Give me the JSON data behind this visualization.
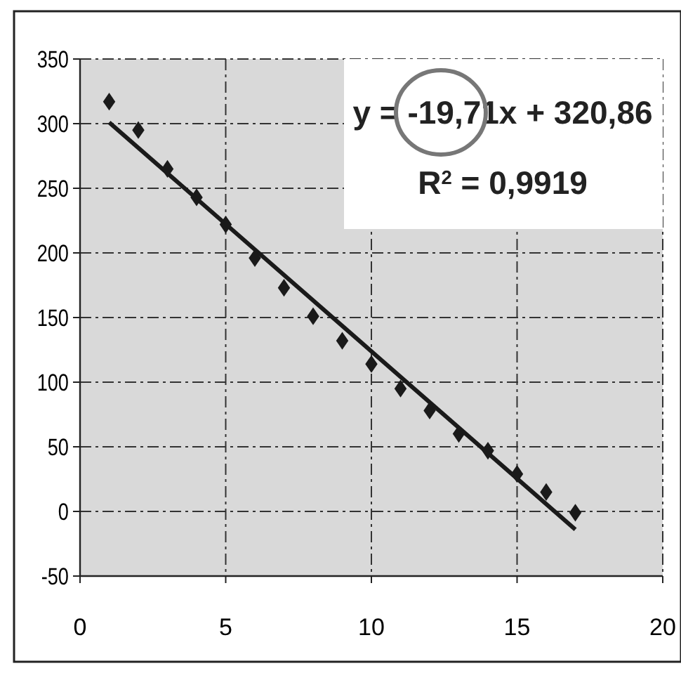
{
  "chart_data": {
    "type": "scatter",
    "x": [
      1,
      2,
      3,
      4,
      5,
      6,
      7,
      8,
      9,
      10,
      11,
      12,
      13,
      14,
      15,
      16,
      17
    ],
    "series": [
      {
        "color": "#1a1a1a",
        "marker": "diamond",
        "values": [
          317,
          295,
          265,
          243,
          222,
          196,
          173,
          151,
          132,
          114,
          95,
          78,
          60,
          47,
          29,
          15,
          -1
        ]
      },
      {
        "type": "line",
        "color": "#1a1a1a",
        "x": [
          1,
          17
        ],
        "values": [
          301,
          -14
        ]
      }
    ],
    "xlim": [
      0,
      20
    ],
    "xticks": [
      0,
      5,
      10,
      15,
      20
    ],
    "ylim": [
      -50,
      350
    ],
    "yticks": [
      -50,
      0,
      50,
      100,
      150,
      200,
      250,
      300,
      350
    ],
    "grid": true,
    "annotations": [
      "y = -19,71x + 320,86",
      "R$^{2}$ = 0,9919"
    ]
  }
}
